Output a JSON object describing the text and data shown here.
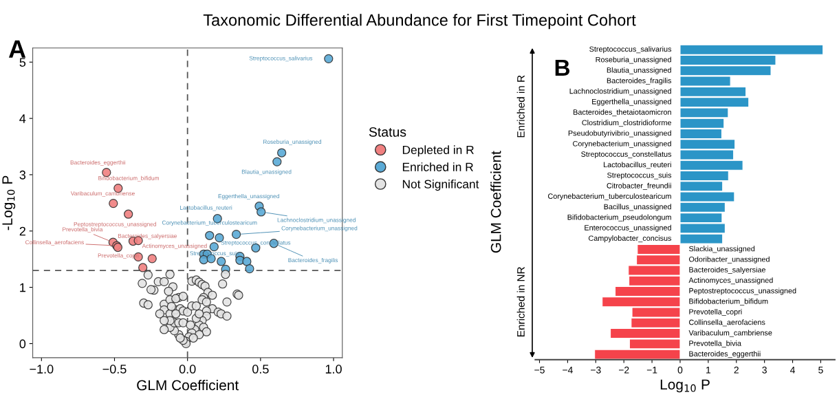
{
  "chart_data": [
    {
      "type": "scatter",
      "title": "Taxonomic Differential Abundance for First Timepoint Cohort",
      "xlabel": "GLM Coefficient",
      "ylabel": "-Log$_{10}$ P",
      "legend_title": "Status",
      "legend": "right",
      "marker": "circle",
      "grid": false,
      "xlim": [
        -1.06,
        1.06
      ],
      "ylim": [
        -0.25,
        5.25
      ],
      "xticks": [
        {
          "value": -1.0,
          "label": "−1.0"
        },
        {
          "value": -0.5,
          "label": "−0.5"
        },
        {
          "value": 0.0,
          "label": "0.0"
        },
        {
          "value": 0.5,
          "label": "0.5"
        },
        {
          "value": 1.0,
          "label": "1.0"
        }
      ],
      "yticks": [
        0,
        1,
        2,
        3,
        4,
        5
      ],
      "ref_lines": [
        {
          "axis": "y",
          "value": 1.3,
          "color": "#555555",
          "line_style": "dashed"
        },
        {
          "axis": "x",
          "value": 0,
          "color": "#555555",
          "line_style": "dashed"
        }
      ],
      "series": [
        {
          "name": "Depleted in R",
          "color": "#f08080",
          "x": [
            -0.555,
            -0.475,
            -0.508,
            -0.405,
            -0.51,
            -0.485,
            -0.477,
            -0.373,
            -0.337,
            -0.337,
            -0.242,
            -0.306
          ],
          "values": [
            3.04,
            2.76,
            2.49,
            2.3,
            1.8,
            1.74,
            1.71,
            1.82,
            1.83,
            1.54,
            1.51,
            1.35
          ]
        },
        {
          "name": "Enriched in R",
          "color": "#5aaad6",
          "x": [
            0.966,
            0.645,
            0.613,
            0.491,
            0.504,
            0.205,
            0.151,
            0.218,
            0.334,
            0.182,
            0.467,
            0.591,
            0.111,
            0.135,
            0.111,
            0.162,
            0.231,
            0.359,
            0.359,
            0.406,
            0.425,
            0.261
          ],
          "values": [
            5.06,
            3.39,
            3.23,
            2.44,
            2.34,
            2.22,
            1.92,
            1.88,
            1.94,
            1.72,
            1.7,
            1.78,
            1.59,
            1.59,
            1.49,
            1.51,
            1.46,
            1.55,
            1.48,
            1.46,
            1.33,
            1.32
          ]
        },
        {
          "name": "Not Significant",
          "color": "#e3e3e3",
          "x": [
            -0.27,
            -0.12,
            -0.31,
            -0.2,
            -0.16,
            -0.1,
            -0.23,
            -0.25,
            -0.13,
            -0.06,
            -0.3,
            -0.27,
            -0.16,
            -0.12,
            -0.08,
            -0.03,
            -0.16,
            -0.12,
            -0.08,
            -0.05,
            -0.03,
            0.0,
            0.03,
            0.06,
            0.03,
            0.06,
            0.08,
            0.1,
            0.12,
            0.14,
            0.17,
            0.11,
            0.1,
            0.13,
            0.34,
            0.35,
            0.27,
            0.24,
            0.26,
            0.17,
            0.21,
            0.23,
            0.27,
            0.13,
            0.13,
            0.1,
            0.08,
            0.05,
            0.03,
            0.01,
            -0.01,
            -0.01,
            -0.03,
            -0.06,
            -0.09,
            -0.12,
            -0.16,
            -0.09,
            -0.06,
            -0.03,
            0.02,
            0.06,
            0.08,
            0.11,
            0.13,
            0.08,
            0.04,
            -0.05,
            -0.08,
            -0.12,
            -0.11,
            -0.19,
            -0.16
          ],
          "values": [
            1.22,
            1.23,
            1.07,
            1.1,
            1.1,
            1.01,
            0.95,
            0.96,
            0.93,
            0.82,
            0.72,
            0.69,
            0.7,
            0.78,
            0.8,
            0.84,
            0.6,
            0.53,
            0.6,
            0.62,
            0.58,
            0.56,
            0.67,
            0.67,
            1.11,
            1.13,
            1.09,
            1.05,
            1.02,
            0.91,
            0.86,
            0.82,
            0.78,
            0.74,
            0.88,
            0.86,
            0.74,
            1.06,
            1.23,
            0.62,
            0.56,
            0.53,
            0.49,
            0.58,
            0.49,
            0.41,
            0.33,
            0.25,
            0.19,
            0.12,
            0.04,
            0.0,
            0.06,
            0.16,
            0.23,
            0.29,
            0.25,
            0.37,
            0.37,
            0.37,
            0.33,
            0.45,
            0.53,
            0.29,
            0.21,
            0.16,
            0.1,
            0.1,
            0.53,
            0.41,
            0.66,
            0.53,
            0.41
          ]
        }
      ],
      "annotations": [
        "A",
        {
          "text": "Streptococcus_salivarius",
          "x": 0.966,
          "y": 5.06
        },
        {
          "text": "Roseburia_unassigned",
          "x": 0.645,
          "y": 3.39
        },
        {
          "text": "Blautia_unassigned",
          "x": 0.613,
          "y": 3.23
        },
        {
          "text": "Eggerthella_unassigned",
          "x": 0.491,
          "y": 2.44
        },
        {
          "text": "Lachnoclostridium_unassigned",
          "x": 0.504,
          "y": 2.34
        },
        {
          "text": "Lactobacillus_reuteri",
          "x": 0.205,
          "y": 2.22
        },
        {
          "text": "Corynebacterium_tuberculostearicum",
          "x": 0.151,
          "y": 1.92
        },
        {
          "text": "Corynebacterium_unassigned",
          "x": 0.334,
          "y": 1.94
        },
        {
          "text": "Streptococcus_constellatus",
          "x": 0.467,
          "y": 1.7
        },
        {
          "text": "Bacteroides_fragilis",
          "x": 0.591,
          "y": 1.78
        },
        {
          "text": "Streptococcus_suis",
          "x": 0.231,
          "y": 1.46
        },
        {
          "text": "Bacteroides_eggerthii",
          "x": -0.555,
          "y": 3.04
        },
        {
          "text": "Bifidobacterium_bifidum",
          "x": -0.475,
          "y": 2.76
        },
        {
          "text": "Varibaculum_cambriense",
          "x": -0.508,
          "y": 2.49
        },
        {
          "text": "Peptostreptococcus_unassigned",
          "x": -0.405,
          "y": 2.3
        },
        {
          "text": "Prevotella_bivia",
          "x": -0.51,
          "y": 1.8
        },
        {
          "text": "Bacteroides_salyersiae",
          "x": -0.373,
          "y": 1.82
        },
        {
          "text": "Collinsella_aerofaciens",
          "x": -0.485,
          "y": 1.74
        },
        {
          "text": "Actinomyces_unassigned",
          "x": -0.337,
          "y": 1.83
        },
        {
          "text": "Prevotella_copri",
          "x": -0.337,
          "y": 1.54
        }
      ]
    },
    {
      "type": "bar",
      "orientation": "horizontal",
      "xlabel": "Log$_{10}$ P",
      "ylabel": "GLM Coefficient",
      "categories": [
        "Streptococcus_salivarius",
        "Roseburia_unassigned",
        "Blautia_unassigned",
        "Bacteroides_fragilis",
        "Lachnoclostridium_unassigned",
        "Eggerthella_unassigned",
        "Bacteroides_thetaiotaomicron",
        "Clostridium_clostridioforme",
        "Pseudobutyrivibrio_unassigned",
        "Corynebacterium_unassigned",
        "Streptococcus_constellatus",
        "Lactobacillus_reuteri",
        "Streptococcus_suis",
        "Citrobacter_freundii",
        "Corynebacterium_tuberculostearicum",
        "Bacillus_unassigned",
        "Bifidobacterium_pseudolongum",
        "Enterococcus_unassigned",
        "Campylobacter_concisus",
        "Slackia_unassigned",
        "Odoribacter_unassigned",
        "Bacteroides_salyersiae",
        "Actinomyces_unassigned",
        "Peptostreptococcus_unassigned",
        "Bifidobacterium_bifidum",
        "Prevotella_copri",
        "Collinsella_aerofaciens",
        "Varibaculum_cambriense",
        "Prevotella_bivia",
        "Bacteroides_eggerthii"
      ],
      "values": [
        5.08,
        3.4,
        3.23,
        1.79,
        2.34,
        2.44,
        1.71,
        1.56,
        1.48,
        1.95,
        1.9,
        2.23,
        1.72,
        1.51,
        1.93,
        1.6,
        1.49,
        1.6,
        1.51,
        -1.52,
        -1.55,
        -1.84,
        -1.82,
        -2.31,
        -2.77,
        -1.71,
        -1.74,
        -2.48,
        -1.8,
        -3.04
      ],
      "colors": [
        "#2b95c7",
        "#2b95c7",
        "#2b95c7",
        "#2b95c7",
        "#2b95c7",
        "#2b95c7",
        "#2b95c7",
        "#2b95c7",
        "#2b95c7",
        "#2b95c7",
        "#2b95c7",
        "#2b95c7",
        "#2b95c7",
        "#2b95c7",
        "#2b95c7",
        "#2b95c7",
        "#2b95c7",
        "#2b95c7",
        "#2b95c7",
        "#f5434b",
        "#f5434b",
        "#f5434b",
        "#f5434b",
        "#f5434b",
        "#f5434b",
        "#f5434b",
        "#f5434b",
        "#f5434b",
        "#f5434b",
        "#f5434b"
      ],
      "xlim": [
        -5.15,
        5.5
      ],
      "xticks": [
        {
          "value": -5,
          "label": "−5"
        },
        {
          "value": -4,
          "label": "−4"
        },
        {
          "value": -3,
          "label": "−3"
        },
        {
          "value": -2,
          "label": "−2"
        },
        {
          "value": -1,
          "label": "−1"
        },
        0,
        1,
        2,
        3,
        4,
        5
      ],
      "annotations": [
        "B",
        "Enriched in R",
        "Enriched in NR"
      ]
    }
  ]
}
